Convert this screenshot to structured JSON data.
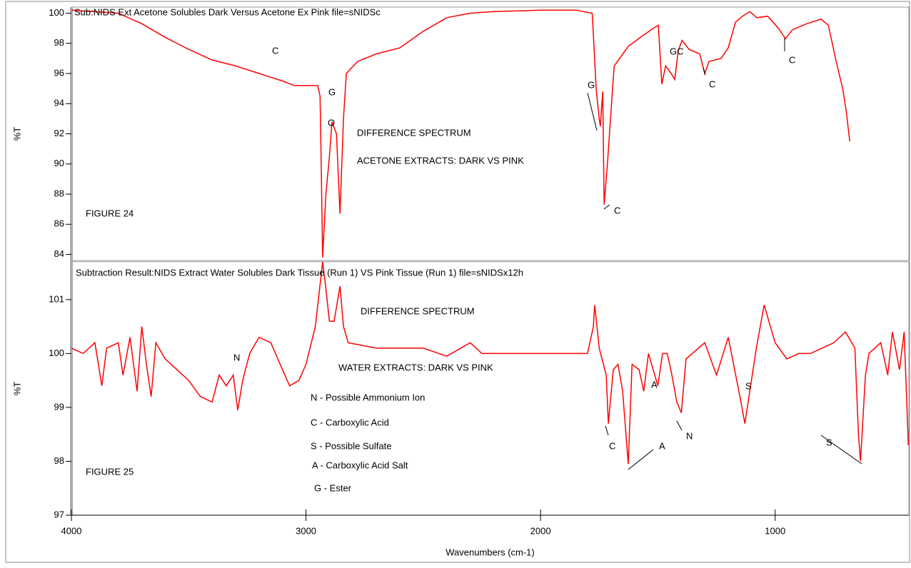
{
  "chart_data": [
    {
      "type": "line",
      "title": "Sub:NIDS Ext Acetone Solubles Dark Versus Acetone Ex Pink file=sNIDSc",
      "ylabel": "%T",
      "color": "#ff0000",
      "xlim": [
        4000,
        430
      ],
      "ylim": [
        83.6,
        100.4
      ],
      "yticks": [
        84,
        86,
        88,
        90,
        92,
        94,
        96,
        98,
        100
      ],
      "x": [
        4000,
        3800,
        3700,
        3600,
        3500,
        3400,
        3300,
        3200,
        3100,
        3050,
        2950,
        2940,
        2935,
        2929,
        2915,
        2900,
        2889,
        2870,
        2855,
        2840,
        2828,
        2780,
        2700,
        2600,
        2500,
        2400,
        2300,
        2200,
        2000,
        1850,
        1780,
        1778,
        1763,
        1750,
        1745,
        1735,
        1729,
        1715,
        1693,
        1686,
        1626,
        1565,
        1519,
        1498,
        1483,
        1467,
        1443,
        1428,
        1413,
        1397,
        1367,
        1321,
        1300,
        1282,
        1230,
        1200,
        1169,
        1139,
        1108,
        1078,
        1032,
        986,
        956,
        926,
        865,
        804,
        773,
        743,
        712,
        697,
        682
      ],
      "values": [
        100.2,
        100.0,
        99.3,
        98.4,
        97.6,
        96.9,
        96.5,
        96.0,
        95.5,
        95.2,
        95.2,
        94.5,
        90.0,
        83.8,
        88.0,
        90.5,
        92.8,
        92.0,
        86.7,
        93.0,
        96.0,
        96.8,
        97.3,
        97.7,
        98.8,
        99.7,
        100.0,
        100.1,
        100.2,
        100.2,
        100.0,
        99.5,
        95.0,
        93.0,
        92.5,
        94.8,
        87.3,
        90.0,
        95.0,
        96.5,
        97.8,
        98.5,
        99.0,
        99.2,
        95.3,
        96.5,
        96.0,
        95.6,
        97.5,
        98.2,
        97.6,
        97.3,
        96.0,
        96.8,
        97.0,
        97.7,
        99.4,
        99.8,
        100.1,
        99.7,
        99.8,
        99.0,
        98.3,
        98.9,
        99.3,
        99.6,
        99.2,
        97.0,
        95.0,
        93.5,
        91.5
      ],
      "annotations": [
        "C",
        "G",
        "O",
        "DIFFERENCE SPECTRUM",
        "ACETONE EXTRACTS: DARK VS PINK",
        "FIGURE 24",
        "G",
        "C",
        "GC",
        "C",
        "C"
      ]
    },
    {
      "type": "line",
      "title": "Subtraction Result:NIDS Extract Water Solubles Dark Tissue (Run 1) VS Pink Tissue (Run 1) file=sNIDSx12h",
      "ylabel": "%T",
      "xlabel": "Wavenumbers (cm-1)",
      "color": "#ff0000",
      "xlim": [
        4000,
        430
      ],
      "ylim": [
        97,
        101.7
      ],
      "xticks": [
        4000,
        3000,
        2000,
        1000
      ],
      "yticks": [
        97,
        98,
        99,
        100,
        101
      ],
      "x": [
        4000,
        3950,
        3900,
        3870,
        3850,
        3800,
        3780,
        3750,
        3720,
        3700,
        3680,
        3660,
        3640,
        3600,
        3550,
        3500,
        3450,
        3400,
        3370,
        3340,
        3310,
        3291,
        3270,
        3240,
        3200,
        3150,
        3100,
        3070,
        3030,
        3000,
        2960,
        2929,
        2915,
        2900,
        2880,
        2855,
        2840,
        2820,
        2700,
        2500,
        2400,
        2300,
        2250,
        2000,
        1800,
        1775,
        1769,
        1750,
        1720,
        1711,
        1690,
        1670,
        1650,
        1626,
        1610,
        1580,
        1560,
        1540,
        1500,
        1480,
        1460,
        1440,
        1419,
        1400,
        1380,
        1300,
        1250,
        1200,
        1150,
        1129,
        1080,
        1047,
        1000,
        950,
        900,
        850,
        800,
        750,
        700,
        660,
        645,
        636,
        615,
        600,
        550,
        520,
        500,
        470,
        450,
        432
      ],
      "values": [
        100.1,
        100.0,
        100.2,
        99.4,
        100.1,
        100.2,
        99.6,
        100.3,
        99.3,
        100.5,
        99.8,
        99.2,
        100.2,
        99.9,
        99.7,
        99.5,
        99.2,
        99.1,
        99.6,
        99.4,
        99.6,
        98.95,
        99.5,
        100.0,
        100.3,
        100.2,
        99.7,
        99.4,
        99.5,
        99.8,
        100.5,
        101.7,
        101.2,
        100.6,
        100.6,
        101.25,
        100.5,
        100.2,
        100.1,
        100.1,
        99.95,
        100.2,
        100.0,
        100.0,
        100.0,
        100.5,
        100.9,
        100.1,
        99.6,
        98.7,
        99.7,
        99.8,
        99.3,
        97.95,
        99.8,
        99.7,
        99.3,
        100.0,
        99.4,
        100.0,
        100.0,
        99.6,
        99.1,
        98.9,
        99.9,
        100.2,
        99.6,
        100.3,
        99.2,
        98.7,
        100.1,
        100.9,
        100.2,
        99.9,
        100.0,
        100.0,
        100.1,
        100.2,
        100.4,
        100.1,
        98.5,
        98.0,
        99.6,
        100.0,
        100.2,
        99.6,
        100.4,
        99.7,
        100.4,
        98.3
      ],
      "annotations": [
        "DIFFERENCE SPECTRUM",
        "N",
        "WATER EXTRACTS: DARK VS PINK",
        "N - Possible Ammonium Ion",
        "C - Carboxylic Acid",
        "S - Possible Sulfate",
        "A - Carboxylic Acid Salt",
        "G - Ester",
        "FIGURE 25",
        "A",
        "S",
        "C",
        "N",
        "A",
        "S"
      ]
    }
  ]
}
